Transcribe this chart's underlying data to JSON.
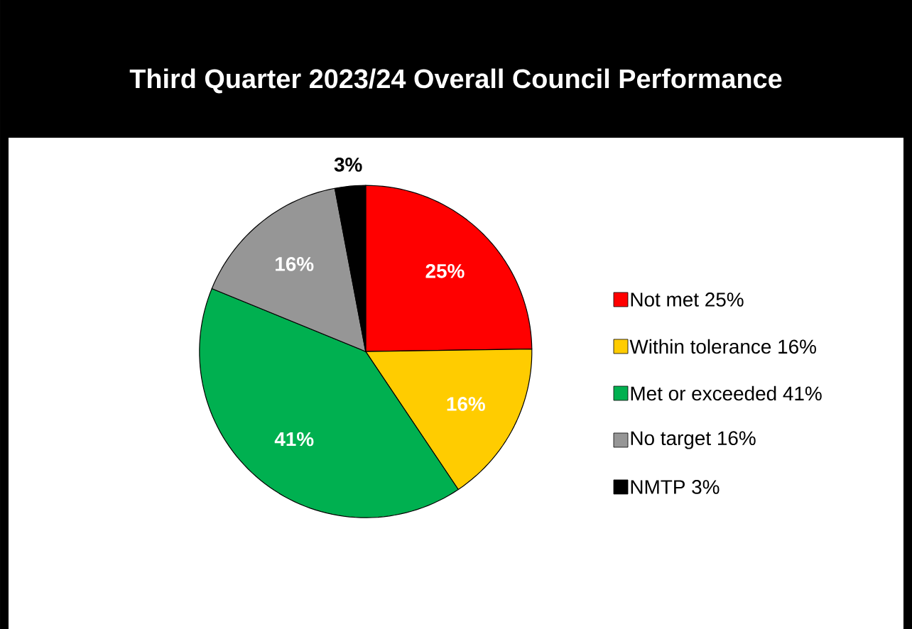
{
  "chart_data": {
    "type": "pie",
    "title": "Third Quarter 2023/24 Overall Council Performance",
    "categories": [
      "Not met 25%",
      "Within tolerance 16%",
      "Met or exceeded 41%",
      "No target 16%",
      "NMTP 3%"
    ],
    "values": [
      25,
      16,
      41,
      16,
      3
    ],
    "value_labels": [
      "25%",
      "16%",
      "41%",
      "16%",
      "3%"
    ],
    "colors": [
      "#ff0000",
      "#ffcc00",
      "#00b050",
      "#969696",
      "#000000"
    ],
    "legend": "right"
  }
}
